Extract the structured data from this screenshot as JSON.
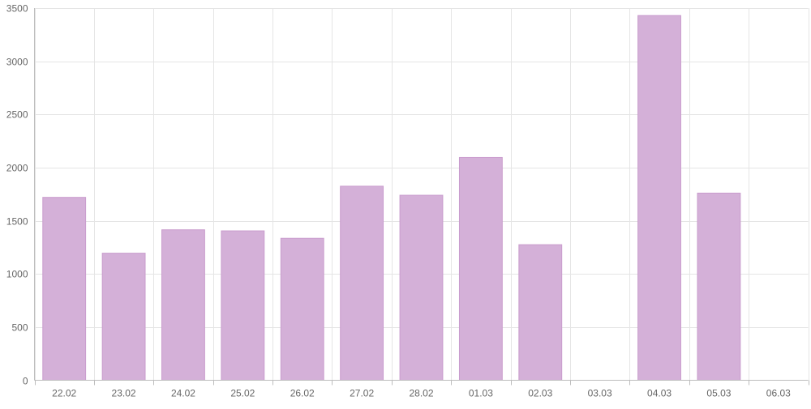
{
  "colors": {
    "bar_fill": "#d4b0d8",
    "bar_stroke": "#c99ccd",
    "grid": "#e5e5e5",
    "axis": "#bdbdbd",
    "text": "#666666"
  },
  "chart_data": {
    "type": "bar",
    "title": "",
    "xlabel": "",
    "ylabel": "",
    "categories": [
      "22.02",
      "23.02",
      "24.02",
      "25.02",
      "26.02",
      "27.02",
      "28.02",
      "01.03",
      "02.03",
      "03.03",
      "04.03",
      "05.03",
      "06.03"
    ],
    "values": [
      1720,
      1195,
      1415,
      1405,
      1335,
      1825,
      1740,
      2095,
      1275,
      0,
      3430,
      1760,
      0
    ],
    "ylim": [
      0,
      3500
    ],
    "yticks": [
      0,
      500,
      1000,
      1500,
      2000,
      2500,
      3000,
      3500
    ],
    "grid": true,
    "legend": "none"
  }
}
